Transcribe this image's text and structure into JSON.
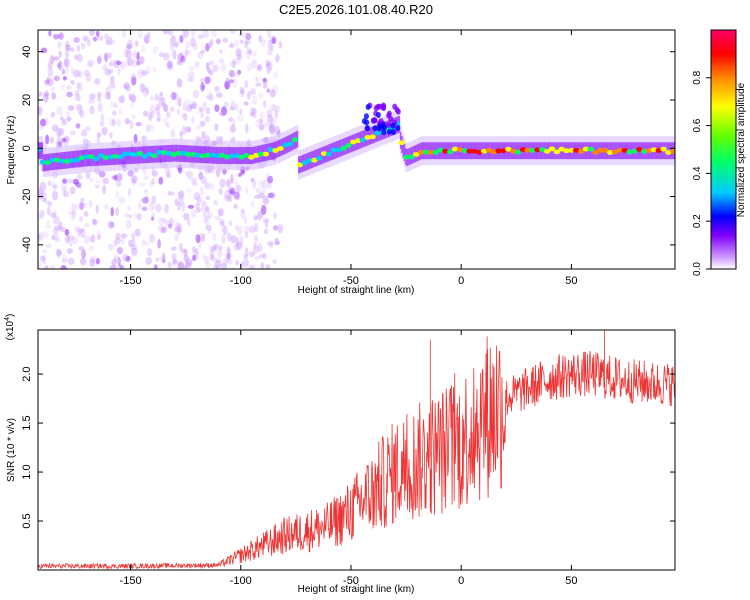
{
  "figure": {
    "title": "C2E5.2026.101.08.40.R20"
  },
  "chart_data": [
    {
      "type": "heatmap",
      "xlabel": "Height of straight line (km)",
      "ylabel": "Frequency (Hz)",
      "xlim": [
        -192,
        97
      ],
      "ylim": [
        -50,
        49
      ],
      "xticks": [
        -150,
        -100,
        -50,
        0,
        50
      ],
      "yticks": [
        -40,
        -20,
        0,
        20,
        40
      ],
      "colorbar": {
        "label": "Normalized spectral amplitude",
        "range": [
          0,
          1
        ],
        "ticks": [
          0.0,
          0.2,
          0.4,
          0.6,
          0.8
        ],
        "tick_labels": [
          "0.0",
          "0.2",
          "0.4",
          "0.6",
          "0.8"
        ],
        "colors": [
          "#ffffff",
          "#cc99ff",
          "#8000ff",
          "#0000ff",
          "#00ccff",
          "#00ff66",
          "#66ff00",
          "#ffff00",
          "#ff8800",
          "#ff0000",
          "#ff0066"
        ]
      },
      "ridge_frequency_hz": [
        {
          "x": -190,
          "y": -6
        },
        {
          "x": -170,
          "y": -4
        },
        {
          "x": -150,
          "y": -3
        },
        {
          "x": -130,
          "y": -2
        },
        {
          "x": -110,
          "y": -3
        },
        {
          "x": -95,
          "y": -3
        },
        {
          "x": -85,
          "y": -1
        },
        {
          "x": -78,
          "y": 2
        },
        {
          "x": -72,
          "y": 5
        },
        {
          "x": -72,
          "y": -7
        },
        {
          "x": -60,
          "y": -4
        },
        {
          "x": -48,
          "y": 0
        },
        {
          "x": -38,
          "y": 5
        },
        {
          "x": -30,
          "y": 10
        },
        {
          "x": -25,
          "y": -4
        },
        {
          "x": -18,
          "y": -1
        },
        {
          "x": 0,
          "y": -1
        },
        {
          "x": 50,
          "y": -1
        },
        {
          "x": 95,
          "y": -1
        }
      ]
    },
    {
      "type": "line",
      "xlabel": "Height of straight line (km)",
      "ylabel": "SNR (10 * v/v)",
      "multiplier_label": "(x10",
      "multiplier_exponent": "4",
      "xlim": [
        -192,
        97
      ],
      "ylim": [
        0,
        24500
      ],
      "xticks": [
        -150,
        -100,
        -50,
        0,
        50
      ],
      "yticks": [
        5000,
        10000,
        15000,
        20000
      ],
      "ytick_labels": [
        "0.5",
        "1.0",
        "1.5",
        "2.0"
      ],
      "series": [
        {
          "name": "SNR",
          "color": "#ee3333",
          "envelope": [
            {
              "x": -192,
              "y": 400
            },
            {
              "x": -150,
              "y": 400
            },
            {
              "x": -110,
              "y": 500
            },
            {
              "x": -100,
              "y": 1500
            },
            {
              "x": -80,
              "y": 3500
            },
            {
              "x": -60,
              "y": 4500
            },
            {
              "x": -50,
              "y": 6000
            },
            {
              "x": -40,
              "y": 8000
            },
            {
              "x": -30,
              "y": 10000
            },
            {
              "x": -20,
              "y": 11000
            },
            {
              "x": -10,
              "y": 12000
            },
            {
              "x": 0,
              "y": 13000
            },
            {
              "x": 10,
              "y": 15500
            },
            {
              "x": 20,
              "y": 17500
            },
            {
              "x": 30,
              "y": 18500
            },
            {
              "x": 40,
              "y": 19500
            },
            {
              "x": 50,
              "y": 20000
            },
            {
              "x": 60,
              "y": 20000
            },
            {
              "x": 70,
              "y": 19500
            },
            {
              "x": 80,
              "y": 19200
            },
            {
              "x": 90,
              "y": 19000
            },
            {
              "x": 97,
              "y": 19000
            }
          ],
          "peaks": [
            {
              "x": -14,
              "y": 23500
            },
            {
              "x": 65,
              "y": 24500
            },
            {
              "x": 12,
              "y": 22500
            }
          ]
        }
      ]
    }
  ]
}
